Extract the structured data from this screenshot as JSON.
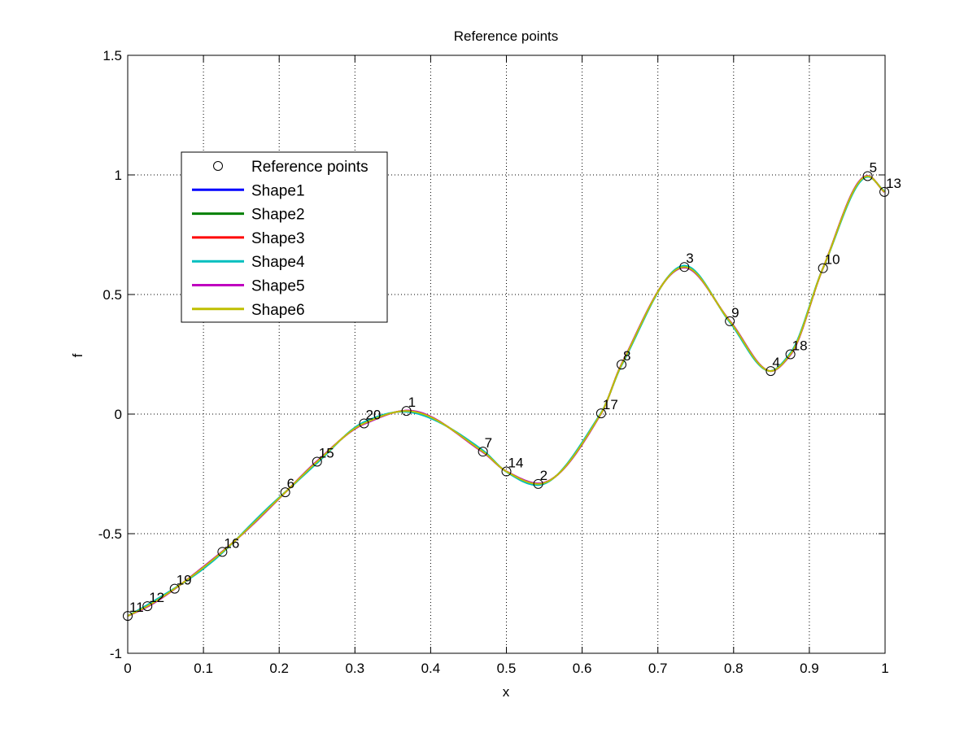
{
  "chart_data": {
    "type": "line",
    "title": "Reference points",
    "xlabel": "x",
    "ylabel": "f",
    "xlim": [
      0,
      1
    ],
    "ylim": [
      -1,
      1.5
    ],
    "xticks": [
      0,
      0.1,
      0.2,
      0.3,
      0.4,
      0.5,
      0.6,
      0.7,
      0.8,
      0.9,
      1
    ],
    "xtick_labels": [
      "0",
      "0.1",
      "0.2",
      "0.3",
      "0.4",
      "0.5",
      "0.6",
      "0.7",
      "0.8",
      "0.9",
      "1"
    ],
    "yticks": [
      -1,
      -0.5,
      0,
      0.5,
      1,
      1.5
    ],
    "ytick_labels": [
      "-1",
      "-0.5",
      "0",
      "0.5",
      "1",
      "1.5"
    ],
    "grid": true,
    "legend_position": "upper-left",
    "reference_points": {
      "name": "Reference points",
      "points": [
        {
          "label": "1",
          "x": 0.368,
          "y": 0.013
        },
        {
          "label": "2",
          "x": 0.542,
          "y": -0.292
        },
        {
          "label": "3",
          "x": 0.735,
          "y": 0.615
        },
        {
          "label": "4",
          "x": 0.849,
          "y": 0.18
        },
        {
          "label": "5",
          "x": 0.977,
          "y": 0.995
        },
        {
          "label": "6",
          "x": 0.208,
          "y": -0.327
        },
        {
          "label": "7",
          "x": 0.469,
          "y": -0.157
        },
        {
          "label": "8",
          "x": 0.652,
          "y": 0.207
        },
        {
          "label": "9",
          "x": 0.795,
          "y": 0.388
        },
        {
          "label": "10",
          "x": 0.918,
          "y": 0.61
        },
        {
          "label": "11",
          "x": 0.0,
          "y": -0.844
        },
        {
          "label": "12",
          "x": 0.026,
          "y": -0.803
        },
        {
          "label": "13",
          "x": 0.999,
          "y": 0.929
        },
        {
          "label": "14",
          "x": 0.5,
          "y": -0.24
        },
        {
          "label": "15",
          "x": 0.25,
          "y": -0.199
        },
        {
          "label": "16",
          "x": 0.125,
          "y": -0.576
        },
        {
          "label": "17",
          "x": 0.625,
          "y": 0.003
        },
        {
          "label": "18",
          "x": 0.875,
          "y": 0.25
        },
        {
          "label": "19",
          "x": 0.062,
          "y": -0.73
        },
        {
          "label": "20",
          "x": 0.312,
          "y": -0.039
        }
      ]
    },
    "series": [
      {
        "name": "Shape1",
        "color": "#0000ff",
        "offset": 0.0
      },
      {
        "name": "Shape2",
        "color": "#008000",
        "offset": 0.002
      },
      {
        "name": "Shape3",
        "color": "#ff0000",
        "offset": -0.002
      },
      {
        "name": "Shape4",
        "color": "#00bfbf",
        "offset": 0.006
      },
      {
        "name": "Shape5",
        "color": "#bf00bf",
        "offset": -0.003
      },
      {
        "name": "Shape6",
        "color": "#bfbf00",
        "offset": 0.0
      }
    ]
  }
}
